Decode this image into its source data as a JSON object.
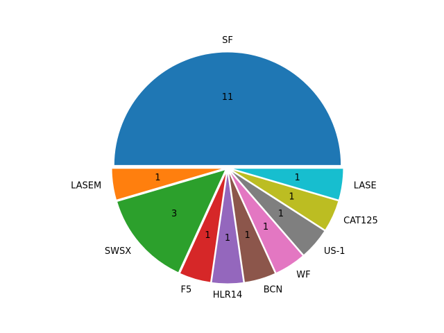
{
  "chart_data": {
    "type": "pie",
    "title": "",
    "start_angle_deg": 0,
    "direction": "counterclockwise",
    "labels": [
      "SF",
      "LASEM",
      "SWSX",
      "F5",
      "HLR14",
      "BCN",
      "WF",
      "US-1",
      "CAT125",
      "LASE"
    ],
    "values": [
      11,
      1,
      3,
      1,
      1,
      1,
      1,
      1,
      1,
      1
    ],
    "value_labels": [
      "11",
      "1",
      "3",
      "1",
      "1",
      "1",
      "1",
      "1",
      "1",
      "1"
    ],
    "explode": [
      0.02,
      0.02,
      0.02,
      0.02,
      0.02,
      0.02,
      0.02,
      0.02,
      0.02,
      0.02
    ],
    "colors": [
      "#1f77b4",
      "#ff7f0e",
      "#2ca02c",
      "#d62728",
      "#9467bd",
      "#8c564b",
      "#e377c2",
      "#7f7f7f",
      "#bcbd22",
      "#17becf"
    ]
  }
}
